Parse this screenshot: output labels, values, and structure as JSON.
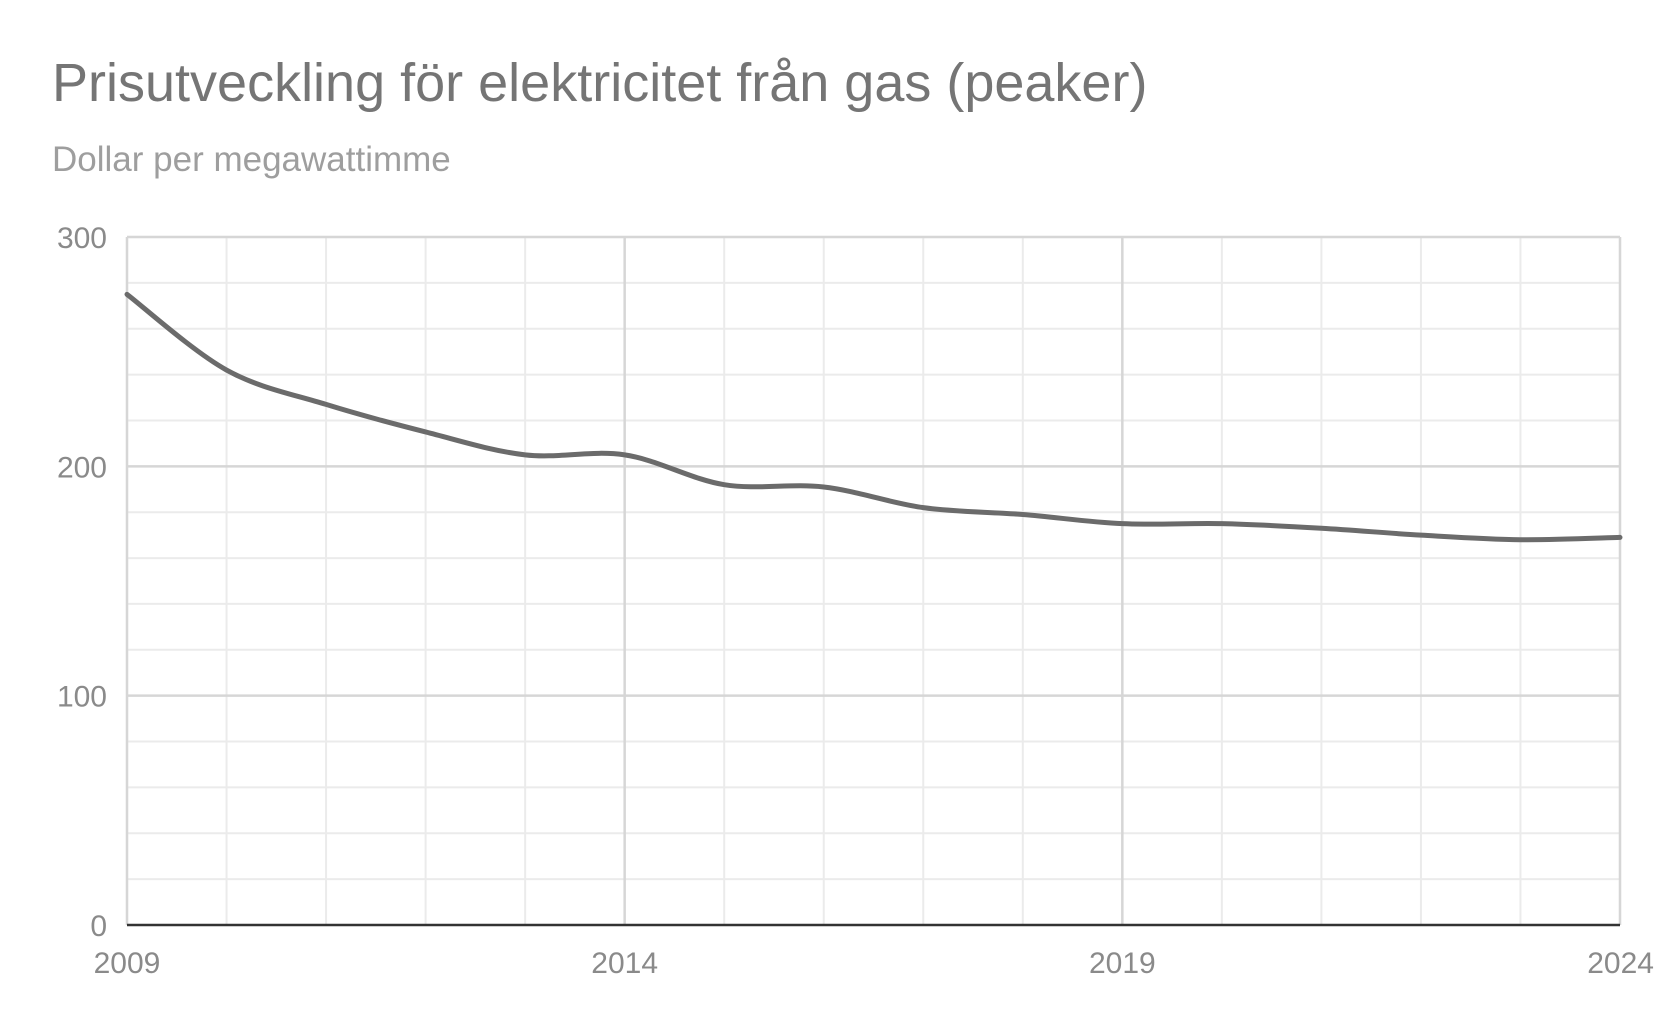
{
  "colors": {
    "line": "#6b6b6b",
    "major_grid": "#d6d6d6",
    "minor_grid": "#ebebeb",
    "baseline": "#333333",
    "title": "#757575",
    "subtitle": "#9e9e9e",
    "tick_label": "#8a8a8a"
  },
  "chart_data": {
    "type": "line",
    "title": "Prisutveckling för elektricitet från gas (peaker)",
    "subtitle": "Dollar per megawattimme",
    "xlabel": "",
    "ylabel": "",
    "x": [
      2009,
      2010,
      2011,
      2012,
      2013,
      2014,
      2015,
      2016,
      2017,
      2018,
      2019,
      2020,
      2021,
      2022,
      2023,
      2024
    ],
    "series": [
      {
        "values": [
          275,
          242,
          227,
          215,
          205,
          205,
          192,
          191,
          182,
          179,
          175,
          175,
          173,
          170,
          168,
          169
        ]
      }
    ],
    "xlim": [
      2009,
      2024
    ],
    "ylim": [
      0,
      300
    ],
    "x_ticks": [
      2009,
      2014,
      2019,
      2024
    ],
    "y_ticks": [
      0,
      100,
      200,
      300
    ],
    "grid": true,
    "legend": "none"
  }
}
